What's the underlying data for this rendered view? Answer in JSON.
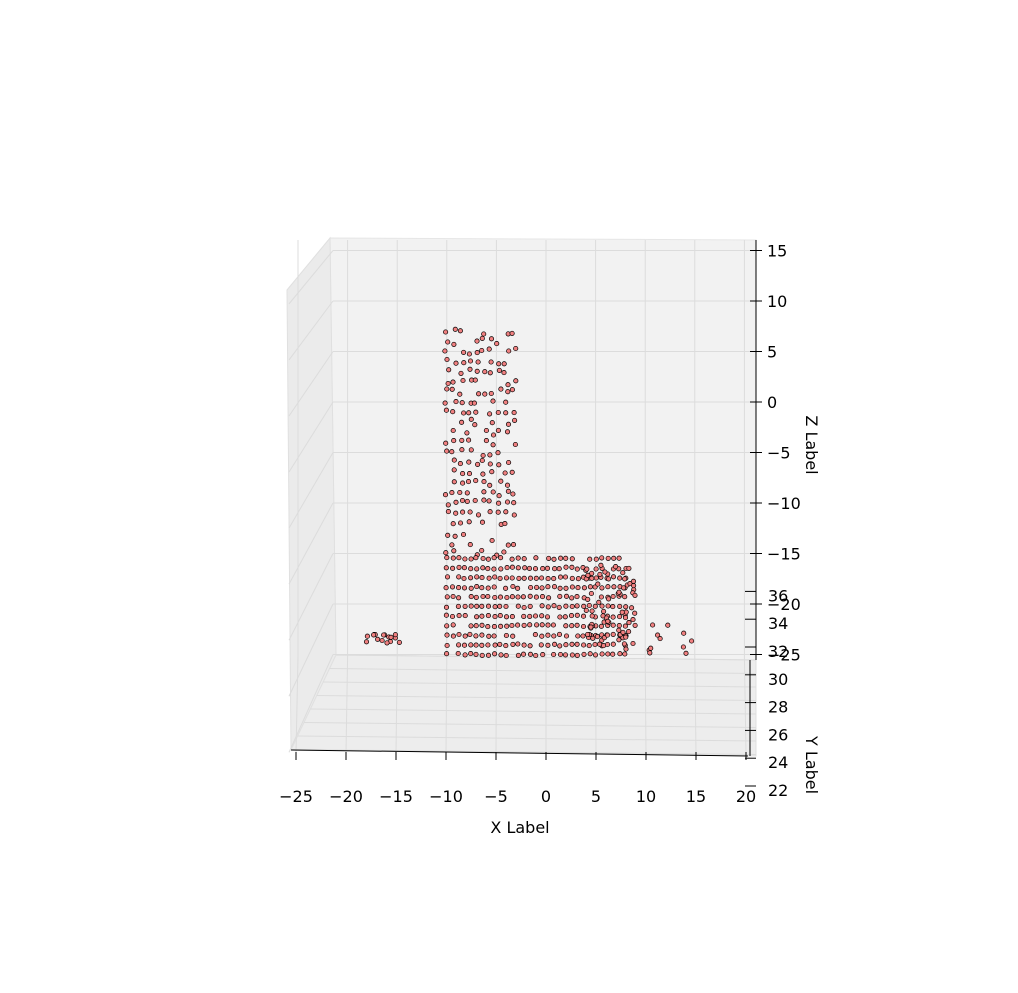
{
  "chart_data": {
    "type": "scatter",
    "projection": "3d",
    "title": "",
    "xlabel": "X Label",
    "ylabel": "Y Label",
    "zlabel": "Z Label",
    "xlim": [
      -26,
      20
    ],
    "ylim": [
      22,
      37
    ],
    "zlim": [
      -26,
      16
    ],
    "xticks": [
      "−25",
      "−20",
      "−15",
      "−10",
      "−5",
      "0",
      "5",
      "10",
      "15",
      "20"
    ],
    "yticks": [
      "22",
      "24",
      "26",
      "28",
      "30",
      "32",
      "34",
      "36"
    ],
    "zticks": [
      "−25",
      "−20",
      "−15",
      "−10",
      "−5",
      "0",
      "5",
      "10",
      "15"
    ],
    "grid": true,
    "marker": {
      "shape": "circle",
      "color": "#f08080",
      "edgecolor": "#000000"
    },
    "series": [
      {
        "shape": "L-shaped point cloud",
        "approximate": true,
        "vertical_bar": {
          "x": [
            -10,
            -3
          ],
          "z": [
            -15,
            7.5
          ]
        },
        "horizontal_base": {
          "x": [
            -10,
            8
          ],
          "z": [
            -25,
            -15
          ]
        },
        "tail": {
          "x": [
            8,
            15
          ],
          "z": [
            -25,
            -21
          ]
        },
        "outlier_cluster": {
          "x": [
            -18.5,
            -14.5
          ],
          "z": [
            -24,
            -23
          ]
        }
      }
    ]
  }
}
